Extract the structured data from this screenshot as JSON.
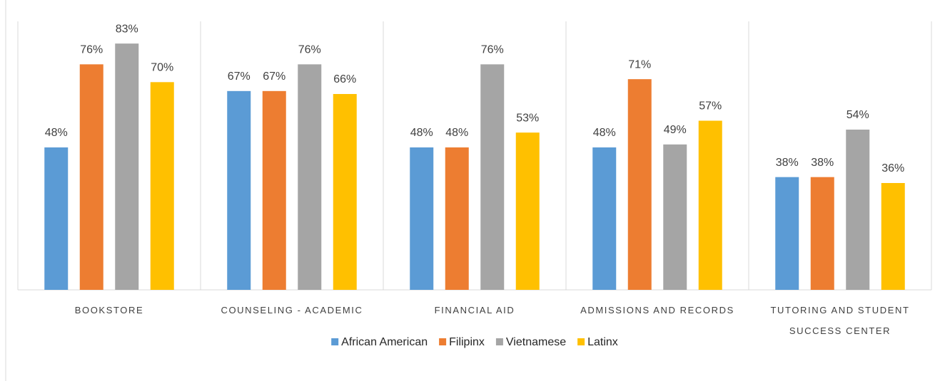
{
  "chart_data": {
    "type": "bar",
    "categories": [
      "BOOKSTORE",
      "COUNSELING - ACADEMIC",
      "FINANCIAL AID",
      "ADMISSIONS AND RECORDS",
      "TUTORING AND STUDENT SUCCESS CENTER"
    ],
    "series": [
      {
        "name": "African American",
        "color": "#5b9bd5",
        "values": [
          48,
          67,
          48,
          48,
          38
        ],
        "value_labels": [
          "48%",
          "67%",
          "48%",
          "48%",
          "38%"
        ]
      },
      {
        "name": "Filipinx",
        "color": "#ed7d31",
        "values": [
          76,
          67,
          48,
          71,
          38
        ],
        "value_labels": [
          "76%",
          "67%",
          "48%",
          "71%",
          "38%"
        ]
      },
      {
        "name": "Vietnamese",
        "color": "#a5a5a5",
        "values": [
          83,
          76,
          76,
          49,
          54
        ],
        "value_labels": [
          "83%",
          "76%",
          "76%",
          "49%",
          "54%"
        ]
      },
      {
        "name": "Latinx",
        "color": "#ffc000",
        "values": [
          70,
          66,
          53,
          57,
          36
        ],
        "value_labels": [
          "70%",
          "66%",
          "53%",
          "57%",
          "36%"
        ]
      }
    ],
    "ylim": [
      0,
      96
    ],
    "legend": "bottom"
  }
}
